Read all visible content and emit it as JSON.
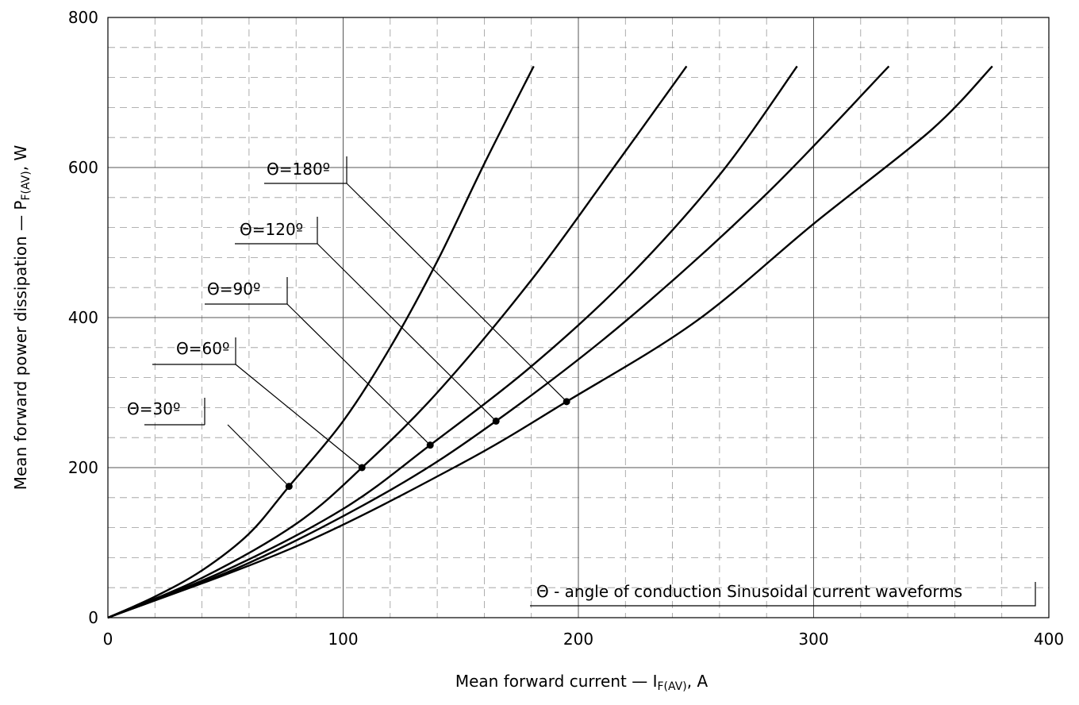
{
  "chart_data": {
    "type": "line",
    "xlabel_main": "Mean forward current — I",
    "xlabel_sub": "F(AV)",
    "xlabel_unit": ", A",
    "ylabel_main": "Mean forward power dissipation — P",
    "ylabel_sub": "F(AV)",
    "ylabel_unit": ", W",
    "xlim": [
      0,
      400
    ],
    "ylim": [
      0,
      800
    ],
    "xticks": [
      "0",
      "100",
      "200",
      "300",
      "400"
    ],
    "yticks": [
      "0",
      "200",
      "400",
      "600",
      "800"
    ],
    "grid": true,
    "legend_box": "Θ - angle of conduction Sinusoidal current waveforms",
    "series": [
      {
        "name": "Θ=30º",
        "x": [
          0,
          20,
          40,
          60,
          77,
          100,
          120,
          140,
          160,
          181
        ],
        "y": [
          0,
          28,
          63,
          112,
          175,
          262,
          360,
          475,
          605,
          735
        ]
      },
      {
        "name": "Θ=60º",
        "x": [
          0,
          40,
          80,
          108,
          140,
          180,
          215,
          246
        ],
        "y": [
          0,
          53,
          125,
          200,
          300,
          450,
          600,
          735
        ]
      },
      {
        "name": "Θ=90º",
        "x": [
          0,
          50,
          100,
          137,
          180,
          220,
          260,
          293
        ],
        "y": [
          0,
          63,
          145,
          230,
          335,
          450,
          590,
          735
        ]
      },
      {
        "name": "Θ=120º",
        "x": [
          0,
          60,
          120,
          165,
          220,
          280,
          332
        ],
        "y": [
          0,
          73,
          170,
          262,
          395,
          565,
          735
        ]
      },
      {
        "name": "Θ=180º",
        "x": [
          0,
          80,
          150,
          195,
          250,
          300,
          350,
          376
        ],
        "y": [
          0,
          95,
          205,
          288,
          395,
          525,
          650,
          735
        ]
      }
    ],
    "markers": [
      {
        "series": "Θ=30º",
        "x": 77,
        "y": 175
      },
      {
        "series": "Θ=60º",
        "x": 108,
        "y": 200
      },
      {
        "series": "Θ=90º",
        "x": 137,
        "y": 230
      },
      {
        "series": "Θ=120º",
        "x": 165,
        "y": 262
      },
      {
        "series": "Θ=180º",
        "x": 195,
        "y": 288
      }
    ]
  }
}
